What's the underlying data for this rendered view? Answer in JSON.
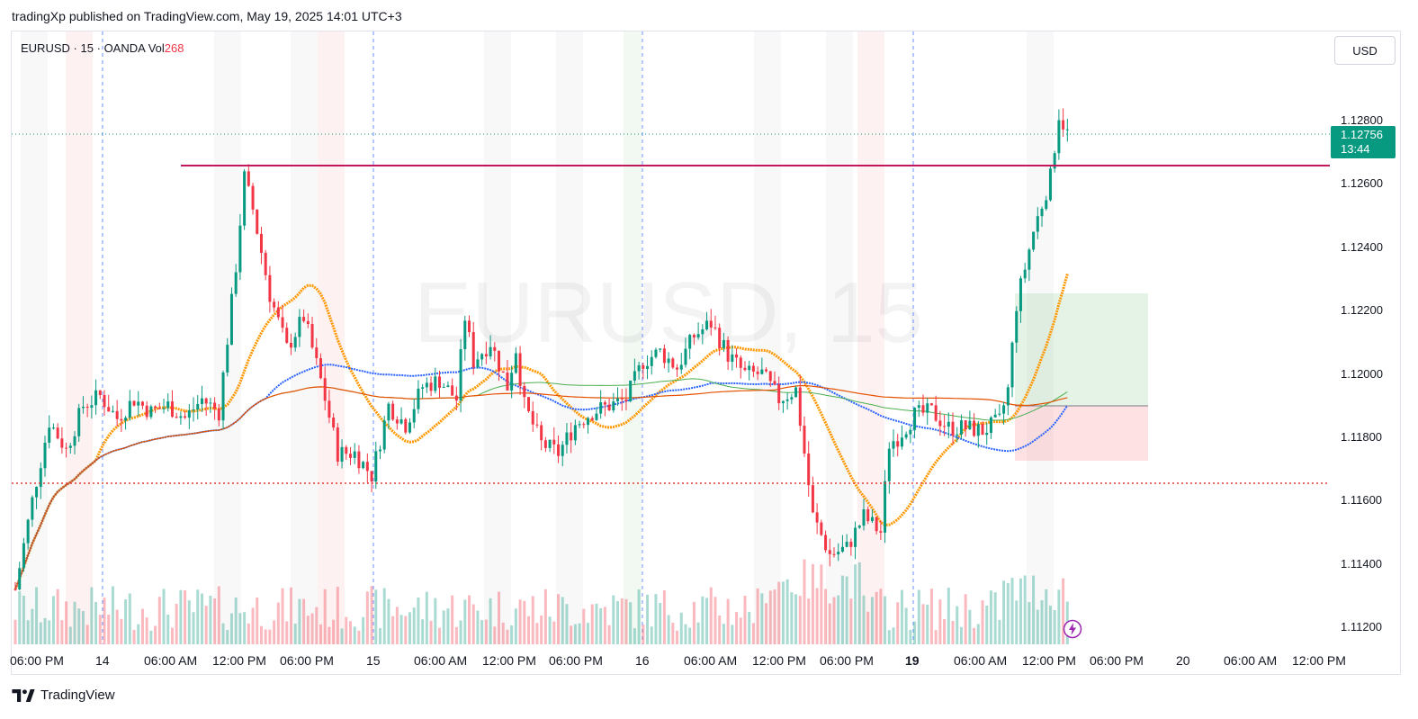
{
  "header": {
    "published_text": "tradingXp published on TradingView.com, May 19, 2025 14:01 UTC+3"
  },
  "legend": {
    "symbol": "EURUSD",
    "sep1": "·",
    "interval": "15",
    "sep2": "·",
    "broker": "OANDA",
    "vol_label": "Vol",
    "vol_value": "268"
  },
  "currency_button": {
    "label": "USD"
  },
  "watermark": "EURUSD, 15",
  "last_price": {
    "price": "1.12756",
    "countdown": "13:44"
  },
  "footer": {
    "brand": "TradingView"
  },
  "colors": {
    "up": "#089981",
    "down": "#f23645",
    "resistance": "#c2185b",
    "support": "#e53935",
    "ma_orange": "#ff9800",
    "ma_blue": "#2962ff",
    "ma_green": "#4caf50",
    "ma_red": "#e65100"
  },
  "chart_data": {
    "type": "candlestick",
    "symbol": "EURUSD",
    "interval": "15",
    "broker": "OANDA",
    "y_axis": {
      "ticks": [
        "1.12800",
        "1.12600",
        "1.12400",
        "1.12200",
        "1.12000",
        "1.11800",
        "1.11600",
        "1.11400",
        "1.11200"
      ],
      "range": [
        1.1113,
        1.1295
      ]
    },
    "x_axis": {
      "ticks": [
        {
          "label": "06:00 PM",
          "bold": false
        },
        {
          "label": "14",
          "bold": false
        },
        {
          "label": "06:00 AM",
          "bold": false
        },
        {
          "label": "12:00 PM",
          "bold": false
        },
        {
          "label": "06:00 PM",
          "bold": false
        },
        {
          "label": "15",
          "bold": false
        },
        {
          "label": "06:00 AM",
          "bold": false
        },
        {
          "label": "12:00 PM",
          "bold": false
        },
        {
          "label": "06:00 PM",
          "bold": false
        },
        {
          "label": "16",
          "bold": false
        },
        {
          "label": "06:00 AM",
          "bold": false
        },
        {
          "label": "12:00 PM",
          "bold": false
        },
        {
          "label": "06:00 PM",
          "bold": false
        },
        {
          "label": "19",
          "bold": true
        },
        {
          "label": "06:00 AM",
          "bold": false
        },
        {
          "label": "12:00 PM",
          "bold": false
        },
        {
          "label": "06:00 PM",
          "bold": false
        },
        {
          "label": "20",
          "bold": false
        },
        {
          "label": "06:00 AM",
          "bold": false
        },
        {
          "label": "12:00 PM",
          "bold": false
        }
      ]
    },
    "levels": {
      "resistance": 1.1266,
      "support": 1.1165,
      "last_price": 1.12756
    },
    "price_path": [
      [
        0,
        1.1132
      ],
      [
        2,
        1.116
      ],
      [
        4,
        1.1185
      ],
      [
        6,
        1.1176
      ],
      [
        8,
        1.119
      ],
      [
        10,
        1.1193
      ],
      [
        12,
        1.1186
      ],
      [
        14,
        1.1192
      ],
      [
        16,
        1.1188
      ],
      [
        18,
        1.119
      ],
      [
        20,
        1.1186
      ],
      [
        22,
        1.1192
      ],
      [
        24,
        1.1188
      ],
      [
        26,
        1.1234
      ],
      [
        27,
        1.1262
      ],
      [
        28,
        1.1252
      ],
      [
        30,
        1.1225
      ],
      [
        32,
        1.1208
      ],
      [
        34,
        1.1218
      ],
      [
        36,
        1.1198
      ],
      [
        38,
        1.1175
      ],
      [
        40,
        1.1175
      ],
      [
        42,
        1.1168
      ],
      [
        44,
        1.119
      ],
      [
        46,
        1.1184
      ],
      [
        48,
        1.1196
      ],
      [
        50,
        1.1198
      ],
      [
        52,
        1.1192
      ],
      [
        53,
        1.1218
      ],
      [
        54,
        1.1204
      ],
      [
        56,
        1.121
      ],
      [
        58,
        1.1196
      ],
      [
        59,
        1.1208
      ],
      [
        60,
        1.119
      ],
      [
        62,
        1.1178
      ],
      [
        64,
        1.1175
      ],
      [
        66,
        1.1184
      ],
      [
        68,
        1.1188
      ],
      [
        70,
        1.119
      ],
      [
        72,
        1.1192
      ],
      [
        74,
        1.1204
      ],
      [
        76,
        1.1207
      ],
      [
        78,
        1.1202
      ],
      [
        80,
        1.1212
      ],
      [
        82,
        1.1216
      ],
      [
        84,
        1.1206
      ],
      [
        86,
        1.12
      ],
      [
        88,
        1.12
      ],
      [
        90,
        1.1192
      ],
      [
        92,
        1.1195
      ],
      [
        94,
        1.1155
      ],
      [
        96,
        1.1143
      ],
      [
        98,
        1.1145
      ],
      [
        100,
        1.1155
      ],
      [
        102,
        1.115
      ],
      [
        103,
        1.1178
      ],
      [
        104,
        1.118
      ],
      [
        106,
        1.1187
      ],
      [
        108,
        1.1188
      ],
      [
        110,
        1.1183
      ],
      [
        112,
        1.1183
      ],
      [
        114,
        1.1182
      ],
      [
        116,
        1.1185
      ],
      [
        117,
        1.1195
      ],
      [
        118,
        1.1222
      ],
      [
        120,
        1.1245
      ],
      [
        122,
        1.1262
      ],
      [
        123,
        1.1282
      ],
      [
        124,
        1.1276
      ]
    ]
  }
}
